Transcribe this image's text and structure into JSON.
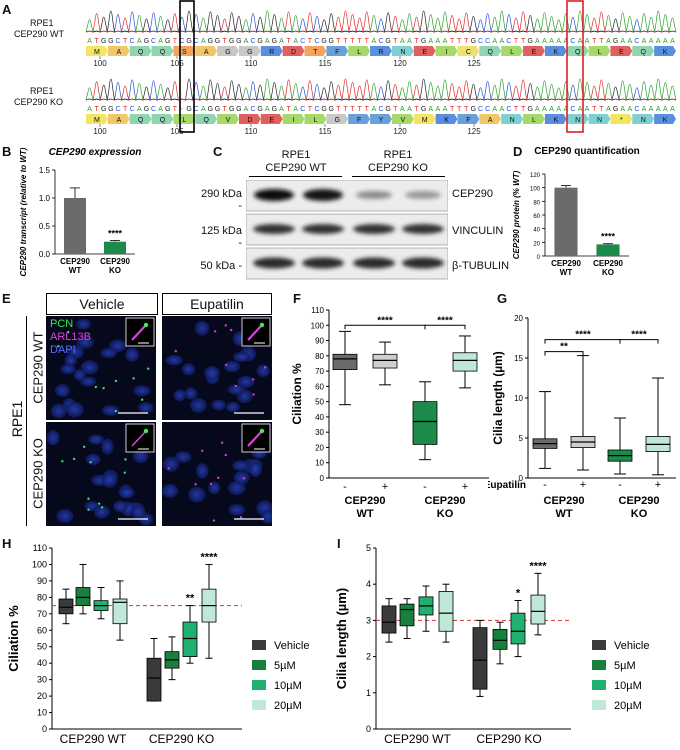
{
  "panels": {
    "A": "A",
    "B": "B",
    "C": "C",
    "D": "D",
    "E": "E",
    "F": "F",
    "G": "G",
    "H": "H",
    "I": "I"
  },
  "panelA": {
    "wt": {
      "label1": "RPE1",
      "label2": "CEP290 WT",
      "seq": "ATGGCTCAGCAGTCGCAGGTGGACGAGATACTCGGTTTTTACGTAATGAAATTTGCCAACTTGAAAAACAATTAGAACAAAAA",
      "aa": [
        "M",
        "A",
        "Q",
        "Q",
        "S",
        "A",
        "G",
        "G",
        "R",
        "D",
        "T",
        "F",
        "L",
        "R",
        "N",
        "E",
        "I",
        "C",
        "Q",
        "L",
        "E",
        "K",
        "Q",
        "L",
        "E",
        "Q",
        "K"
      ],
      "ticks": [
        "100",
        "105",
        "110",
        "115",
        "120",
        "125"
      ]
    },
    "ko": {
      "label1": "RPE1",
      "label2": "CEP290 KO",
      "seq": "ATGGCTCAGCAGT-GCAGGTGGACGAGATACTCGGTTTTTACGTAATGAAATTTGCCAACTTGAAAAACAATTAGAACAAAAA",
      "aa": [
        "M",
        "A",
        "Q",
        "Q",
        "L",
        "Q",
        "V",
        "D",
        "E",
        "I",
        "L",
        "G",
        "F",
        "Y",
        "V",
        "M",
        "K",
        "F",
        "A",
        "N",
        "L",
        "K",
        "N",
        "N",
        "*",
        "N",
        "K"
      ],
      "ticks": [
        "100",
        "105",
        "110",
        "115",
        "120",
        "125"
      ]
    }
  },
  "panelB": {
    "title": "CEP290 expression",
    "ylabel": "CEP290 transcript (relative to WT)",
    "sig": "****"
  },
  "panelC": {
    "header_wt": [
      "RPE1",
      "CEP290 WT"
    ],
    "header_ko": [
      "RPE1",
      "CEP290 KO"
    ],
    "rows": [
      {
        "kda": "290 kDa -",
        "protein": "CEP290"
      },
      {
        "kda": "125 kDa -",
        "protein": "VINCULIN"
      },
      {
        "kda": "50 kDa -",
        "protein": "β-TUBULIN"
      }
    ]
  },
  "panelD": {
    "title": "CEP290 quantification",
    "ylabel": "CEP290 protein (% WT)",
    "sig": "****"
  },
  "panelE": {
    "col_vehicle": "Vehicle",
    "col_eupatilin": "Eupatilin",
    "row_wt": "CEP290 WT",
    "row_ko": "CEP290 KO",
    "side": "RPE1",
    "stain_pcn": "PCN",
    "stain_arl": "ARL13B",
    "stain_dapi": "DAPI"
  },
  "panelF": {
    "ylabel": "Ciliation %",
    "sig": [
      "****",
      "****"
    ]
  },
  "panelG": {
    "ylabel": "Cilia length (µm)",
    "sig": [
      "**",
      "****",
      "****"
    ]
  },
  "panelH": {
    "ylabel": "Ciliation %",
    "sig": [
      "**",
      "****"
    ]
  },
  "panelI": {
    "ylabel": "Cilia length (µm)",
    "sig": [
      "*",
      "****"
    ]
  },
  "legend": [
    "Vehicle",
    "5µM",
    "10µM",
    "20µM"
  ],
  "groups": {
    "wt": "CEP290 WT",
    "ko": "CEP290 KO",
    "wt_l1": "CEP290",
    "wt_l2": "WT",
    "ko_l1": "CEP290",
    "ko_l2": "KO",
    "eupatilin": "Eupatilin",
    "minus": "-",
    "plus": "+"
  },
  "colors": {
    "vehicle": "#3a3a3a",
    "d5": "#17803d",
    "d10": "#22b070",
    "d20": "#bfe8d8",
    "wt_plus": "#cfcfcf",
    "wt_bar": "#6b6b6b",
    "ko_bar": "#1c8a4a",
    "ref_line": "#e03030"
  },
  "chart_data": [
    {
      "id": "B",
      "type": "bar",
      "title": "CEP290 expression",
      "ylabel": "CEP290 transcript (relative to WT)",
      "categories": [
        "CEP290 WT",
        "CEP290 KO"
      ],
      "values": [
        1.0,
        0.22
      ],
      "errors": [
        0.18,
        0.02
      ],
      "ylim": [
        0,
        1.5
      ],
      "yticks": [
        0.0,
        0.5,
        1.0,
        1.5
      ]
    },
    {
      "id": "D",
      "type": "bar",
      "title": "CEP290 quantification",
      "ylabel": "CEP290 protein (% WT)",
      "categories": [
        "CEP290 WT",
        "CEP290 KO"
      ],
      "values": [
        100,
        17
      ],
      "errors": [
        3,
        1
      ],
      "ylim": [
        0,
        120
      ],
      "yticks": [
        0,
        20,
        40,
        60,
        80,
        100,
        120
      ]
    },
    {
      "id": "F",
      "type": "box",
      "ylabel": "Ciliation %",
      "ylim": [
        0,
        110
      ],
      "yticks": [
        0,
        10,
        20,
        30,
        40,
        50,
        60,
        70,
        80,
        90,
        100,
        110
      ],
      "boxes": [
        {
          "group": "CEP290 WT",
          "eupatilin": "-",
          "min": 48,
          "q1": 71,
          "median": 78,
          "q3": 81,
          "max": 96
        },
        {
          "group": "CEP290 WT",
          "eupatilin": "+",
          "min": 61,
          "q1": 72,
          "median": 77,
          "q3": 81,
          "max": 89
        },
        {
          "group": "CEP290 KO",
          "eupatilin": "-",
          "min": 12,
          "q1": 22,
          "median": 37,
          "q3": 50,
          "max": 63
        },
        {
          "group": "CEP290 KO",
          "eupatilin": "+",
          "min": 59,
          "q1": 70,
          "median": 77,
          "q3": 82,
          "max": 93
        }
      ]
    },
    {
      "id": "G",
      "type": "box",
      "ylabel": "Cilia length (µm)",
      "ylim": [
        0,
        20
      ],
      "yticks": [
        0,
        5,
        10,
        15,
        20
      ],
      "boxes": [
        {
          "group": "CEP290 WT",
          "eupatilin": "-",
          "min": 1.2,
          "q1": 3.7,
          "median": 4.3,
          "q3": 4.9,
          "max": 10.8
        },
        {
          "group": "CEP290 WT",
          "eupatilin": "+",
          "min": 1.0,
          "q1": 3.8,
          "median": 4.5,
          "q3": 5.2,
          "max": 15.3
        },
        {
          "group": "CEP290 KO",
          "eupatilin": "-",
          "min": 0.5,
          "q1": 2.1,
          "median": 2.8,
          "q3": 3.5,
          "max": 7.5
        },
        {
          "group": "CEP290 KO",
          "eupatilin": "+",
          "min": 0.4,
          "q1": 3.3,
          "median": 4.2,
          "q3": 5.2,
          "max": 12.5
        }
      ]
    },
    {
      "id": "H",
      "type": "box",
      "ylabel": "Ciliation %",
      "ylim": [
        0,
        110
      ],
      "yticks": [
        0,
        10,
        20,
        30,
        40,
        50,
        60,
        70,
        80,
        90,
        100,
        110
      ],
      "reference_line": 75,
      "series": [
        "Vehicle",
        "5µM",
        "10µM",
        "20µM"
      ],
      "boxes": [
        {
          "group": "CEP290 WT",
          "series": "Vehicle",
          "min": 64,
          "q1": 70,
          "median": 74,
          "q3": 79,
          "max": 85
        },
        {
          "group": "CEP290 WT",
          "series": "5µM",
          "min": 70,
          "q1": 75,
          "median": 80,
          "q3": 86,
          "max": 100
        },
        {
          "group": "CEP290 WT",
          "series": "10µM",
          "min": 67,
          "q1": 72,
          "median": 75,
          "q3": 78,
          "max": 86
        },
        {
          "group": "CEP290 WT",
          "series": "20µM",
          "min": 54,
          "q1": 64,
          "median": 77,
          "q3": 79,
          "max": 90
        },
        {
          "group": "CEP290 KO",
          "series": "Vehicle",
          "min": 17,
          "q1": 17,
          "median": 31,
          "q3": 43,
          "max": 55
        },
        {
          "group": "CEP290 KO",
          "series": "5µM",
          "min": 30,
          "q1": 37,
          "median": 42,
          "q3": 47,
          "max": 56
        },
        {
          "group": "CEP290 KO",
          "series": "10µM",
          "min": 40,
          "q1": 44,
          "median": 55,
          "q3": 65,
          "max": 75
        },
        {
          "group": "CEP290 KO",
          "series": "20µM",
          "min": 43,
          "q1": 65,
          "median": 75,
          "q3": 85,
          "max": 100
        }
      ]
    },
    {
      "id": "I",
      "type": "box",
      "ylabel": "Cilia length (µm)",
      "ylim": [
        0,
        5
      ],
      "yticks": [
        0,
        1,
        2,
        3,
        4,
        5
      ],
      "reference_line": 3,
      "series": [
        "Vehicle",
        "5µM",
        "10µM",
        "20µM"
      ],
      "boxes": [
        {
          "group": "CEP290 WT",
          "series": "Vehicle",
          "min": 2.4,
          "q1": 2.65,
          "median": 2.95,
          "q3": 3.4,
          "max": 3.6
        },
        {
          "group": "CEP290 WT",
          "series": "5µM",
          "min": 2.5,
          "q1": 2.85,
          "median": 3.3,
          "q3": 3.45,
          "max": 3.6
        },
        {
          "group": "CEP290 WT",
          "series": "10µM",
          "min": 2.7,
          "q1": 3.15,
          "median": 3.4,
          "q3": 3.65,
          "max": 3.95
        },
        {
          "group": "CEP290 WT",
          "series": "20µM",
          "min": 2.4,
          "q1": 2.7,
          "median": 3.2,
          "q3": 3.8,
          "max": 4.0
        },
        {
          "group": "CEP290 KO",
          "series": "Vehicle",
          "min": 0.9,
          "q1": 1.1,
          "median": 1.9,
          "q3": 2.8,
          "max": 3.0
        },
        {
          "group": "CEP290 KO",
          "series": "5µM",
          "min": 1.8,
          "q1": 2.2,
          "median": 2.45,
          "q3": 2.75,
          "max": 2.95
        },
        {
          "group": "CEP290 KO",
          "series": "10µM",
          "min": 2.0,
          "q1": 2.35,
          "median": 2.7,
          "q3": 3.2,
          "max": 3.55
        },
        {
          "group": "CEP290 KO",
          "series": "20µM",
          "min": 2.6,
          "q1": 2.9,
          "median": 3.25,
          "q3": 3.7,
          "max": 4.3
        }
      ]
    }
  ]
}
